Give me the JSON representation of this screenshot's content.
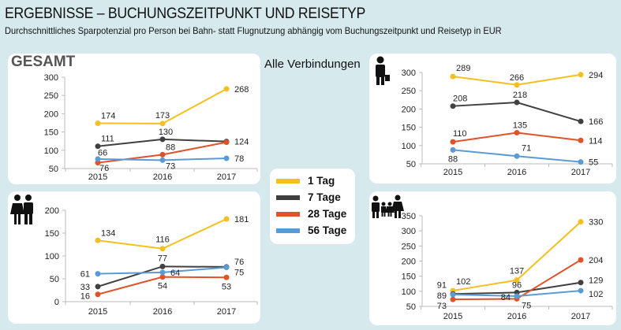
{
  "header": {
    "title": "ERGEBNISSE – BUCHUNGSZEITPUNKT UND REISETYP",
    "subtitle": "Durchschnittliches Sparpotenzial pro Person bei Bahn- statt Flugnutzung abhängig vom Buchungszeitpunkt und Reisetyp in EUR"
  },
  "alle_label": "Alle Verbindungen",
  "legend": [
    {
      "label": "1 Tag",
      "color": "#f5bf1f"
    },
    {
      "label": "7 Tage",
      "color": "#404040"
    },
    {
      "label": "28 Tage",
      "color": "#e0522a"
    },
    {
      "label": "56 Tage",
      "color": "#5b9bd5"
    }
  ],
  "chart_data": [
    {
      "type": "line",
      "panel_title": "GESAMT",
      "icon": "none",
      "categories": [
        "2015",
        "2016",
        "2017"
      ],
      "ylim": [
        50,
        300
      ],
      "yticks": [
        50,
        100,
        150,
        200,
        250,
        300
      ],
      "series": [
        {
          "name": "1 Tag",
          "values": [
            174,
            173,
            268
          ],
          "labels": [
            "174",
            "173",
            "268"
          ]
        },
        {
          "name": "7 Tage",
          "values": [
            111,
            130,
            124
          ],
          "labels": [
            "111",
            "130",
            "124"
          ]
        },
        {
          "name": "28 Tage",
          "values": [
            66,
            88,
            122
          ],
          "labels": [
            "66",
            "88",
            ""
          ]
        },
        {
          "name": "56 Tage",
          "values": [
            76,
            73,
            78
          ],
          "labels": [
            "76",
            "73",
            "78"
          ]
        }
      ]
    },
    {
      "type": "line",
      "panel_title": "",
      "icon": "businessman-icon",
      "categories": [
        "2015",
        "2016",
        "2017"
      ],
      "ylim": [
        50,
        300
      ],
      "yticks": [
        50,
        100,
        150,
        200,
        250,
        300
      ],
      "series": [
        {
          "name": "1 Tag",
          "values": [
            289,
            266,
            294
          ],
          "labels": [
            "289",
            "266",
            "294"
          ]
        },
        {
          "name": "7 Tage",
          "values": [
            208,
            218,
            166
          ],
          "labels": [
            "208",
            "218",
            "166"
          ]
        },
        {
          "name": "28 Tage",
          "values": [
            110,
            135,
            114
          ],
          "labels": [
            "110",
            "135",
            "114"
          ]
        },
        {
          "name": "56 Tage",
          "values": [
            88,
            71,
            55
          ],
          "labels": [
            "88",
            "71",
            "55"
          ]
        }
      ]
    },
    {
      "type": "line",
      "panel_title": "",
      "icon": "couple-icon",
      "categories": [
        "2015",
        "2016",
        "2017"
      ],
      "ylim": [
        0,
        200
      ],
      "yticks": [
        0,
        50,
        100,
        150,
        200
      ],
      "series": [
        {
          "name": "1 Tag",
          "values": [
            134,
            116,
            181
          ],
          "labels": [
            "134",
            "116",
            "181"
          ]
        },
        {
          "name": "7 Tage",
          "values": [
            33,
            77,
            76
          ],
          "labels": [
            "33",
            "77",
            "76"
          ]
        },
        {
          "name": "28 Tage",
          "values": [
            16,
            54,
            53
          ],
          "labels": [
            "16",
            "54",
            "53"
          ]
        },
        {
          "name": "56 Tage",
          "values": [
            61,
            64,
            75
          ],
          "labels": [
            "61",
            "64",
            "75"
          ]
        }
      ]
    },
    {
      "type": "line",
      "panel_title": "",
      "icon": "family-icon",
      "categories": [
        "2015",
        "2016",
        "2017"
      ],
      "ylim": [
        50,
        350
      ],
      "yticks": [
        50,
        100,
        150,
        200,
        250,
        300,
        350
      ],
      "series": [
        {
          "name": "1 Tag",
          "values": [
            102,
            137,
            330
          ],
          "labels": [
            "102",
            "137",
            "330"
          ]
        },
        {
          "name": "7 Tage",
          "values": [
            91,
            96,
            129
          ],
          "labels": [
            "91",
            "96",
            "129"
          ]
        },
        {
          "name": "28 Tage",
          "values": [
            73,
            75,
            204
          ],
          "labels": [
            "73",
            "75",
            "204"
          ]
        },
        {
          "name": "56 Tage",
          "values": [
            89,
            84,
            102
          ],
          "labels": [
            "89",
            "84",
            "102"
          ]
        }
      ]
    }
  ]
}
